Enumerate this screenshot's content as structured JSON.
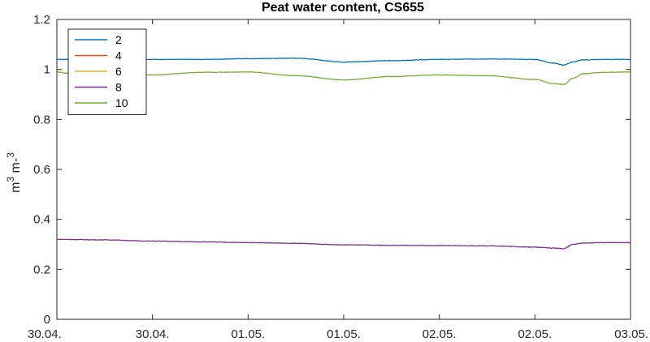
{
  "chart_data": {
    "type": "line",
    "title": "Peat water content, CS655",
    "xlabel": "",
    "ylabel": "m3 m-3",
    "ylim": [
      0,
      1.2
    ],
    "xlim": [
      0,
      3
    ],
    "x_tick_labels": [
      "30.04.",
      "30.04.",
      "01.05.",
      "01.05.",
      "02.05.",
      "02.05.",
      "03.05."
    ],
    "y_tick_labels": [
      "0",
      "0.2",
      "0.4",
      "0.6",
      "0.8",
      "1",
      "1.2"
    ],
    "y_ticks": [
      0,
      0.2,
      0.4,
      0.6,
      0.8,
      1.0,
      1.2
    ],
    "legend_position": "top-left",
    "grid": false,
    "series": [
      {
        "name": "2",
        "color": "#0072BD",
        "x": [
          0,
          0.25,
          0.5,
          0.75,
          1.0,
          1.25,
          1.5,
          1.75,
          2.0,
          2.25,
          2.5,
          2.6,
          2.65,
          2.7,
          2.75,
          2.85,
          3.0
        ],
        "y": [
          1.04,
          1.045,
          1.04,
          1.04,
          1.043,
          1.045,
          1.03,
          1.035,
          1.04,
          1.042,
          1.04,
          1.025,
          1.018,
          1.03,
          1.038,
          1.04,
          1.04
        ]
      },
      {
        "name": "4",
        "color": "#D95319",
        "x": [],
        "y": []
      },
      {
        "name": "6",
        "color": "#EDB120",
        "x": [],
        "y": []
      },
      {
        "name": "8",
        "color": "#7E2F8E",
        "x": [
          0,
          0.25,
          0.5,
          0.75,
          1.0,
          1.25,
          1.5,
          1.75,
          2.0,
          2.25,
          2.5,
          2.6,
          2.65,
          2.7,
          2.75,
          2.85,
          3.0
        ],
        "y": [
          0.32,
          0.318,
          0.313,
          0.31,
          0.307,
          0.304,
          0.298,
          0.296,
          0.295,
          0.294,
          0.289,
          0.285,
          0.283,
          0.3,
          0.305,
          0.307,
          0.307
        ]
      },
      {
        "name": "10",
        "color": "#77AC30",
        "x": [
          0,
          0.05,
          0.1,
          0.25,
          0.5,
          0.75,
          1.0,
          1.25,
          1.5,
          1.75,
          2.0,
          2.25,
          2.5,
          2.6,
          2.65,
          2.7,
          2.75,
          2.85,
          3.0
        ],
        "y": [
          0.99,
          0.985,
          0.98,
          0.978,
          0.978,
          0.988,
          0.99,
          0.975,
          0.958,
          0.972,
          0.978,
          0.975,
          0.96,
          0.943,
          0.94,
          0.965,
          0.983,
          0.988,
          0.99
        ]
      }
    ]
  }
}
